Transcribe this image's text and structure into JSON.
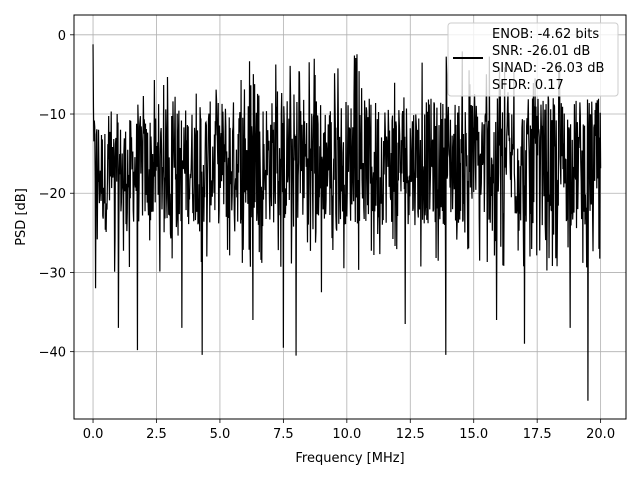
{
  "chart_data": {
    "type": "line",
    "title": "",
    "xlabel": "Frequency [MHz]",
    "ylabel": "PSD [dB]",
    "xlim": [
      -0.75,
      21.0
    ],
    "ylim": [
      -48.5,
      2.5
    ],
    "xticks": [
      0.0,
      2.5,
      5.0,
      7.5,
      10.0,
      12.5,
      15.0,
      17.5,
      20.0
    ],
    "xtick_labels": [
      "0.0",
      "2.5",
      "5.0",
      "7.5",
      "10.0",
      "12.5",
      "15.0",
      "17.5",
      "20.0"
    ],
    "yticks": [
      0,
      -10,
      -20,
      -30,
      -40
    ],
    "ytick_labels": [
      "0",
      "−10",
      "−20",
      "−30",
      "−40"
    ],
    "grid": true,
    "legend_placement": "top-right",
    "legend": {
      "lines": [
        "ENOB: -4.62 bits",
        "SNR: -26.01 dB",
        "SINAD: -26.03 dB",
        "SFDR: 0.17"
      ]
    },
    "series": [
      {
        "color": "#000000",
        "x_range": [
          0.0,
          20.0
        ],
        "envelope": {
          "x": [
            0,
            0.5,
            1,
            2,
            3,
            4,
            5,
            6,
            7,
            8,
            9,
            10,
            11,
            12,
            13,
            14,
            15,
            16,
            17,
            18,
            19,
            20
          ],
          "max": [
            -1.2,
            -9.5,
            -7.5,
            -6.5,
            -4.5,
            -5,
            -4,
            -3,
            -2.5,
            -3,
            -2.5,
            -1.5,
            -0.2,
            -2,
            -2,
            -2,
            -2,
            -2,
            -3,
            -2,
            -3,
            -6
          ],
          "typ_high": [
            -9,
            -12,
            -11,
            -10,
            -9,
            -9,
            -8,
            -8,
            -8,
            -7,
            -8,
            -8,
            -8,
            -8,
            -8,
            -8,
            -8,
            -8,
            -8,
            -8,
            -8,
            -8
          ],
          "typ_low": [
            -22,
            -25,
            -24,
            -24,
            -24,
            -24,
            -24,
            -24,
            -24,
            -24,
            -24,
            -24,
            -24,
            -24,
            -24,
            -24,
            -24,
            -24,
            -24,
            -24,
            -24,
            -24
          ]
        },
        "notable_dips": [
          {
            "x": 0.1,
            "y": -32
          },
          {
            "x": 1.0,
            "y": -37
          },
          {
            "x": 1.75,
            "y": -39.8
          },
          {
            "x": 4.3,
            "y": -40.4
          },
          {
            "x": 3.5,
            "y": -37
          },
          {
            "x": 6.3,
            "y": -36
          },
          {
            "x": 7.5,
            "y": -39.5
          },
          {
            "x": 8.0,
            "y": -40.5
          },
          {
            "x": 9.0,
            "y": -32.5
          },
          {
            "x": 12.3,
            "y": -36.5
          },
          {
            "x": 13.9,
            "y": -40.4
          },
          {
            "x": 15.9,
            "y": -36
          },
          {
            "x": 17.0,
            "y": -39
          },
          {
            "x": 19.5,
            "y": -46.2
          },
          {
            "x": 18.8,
            "y": -37
          }
        ],
        "num_points": 1200
      }
    ]
  }
}
